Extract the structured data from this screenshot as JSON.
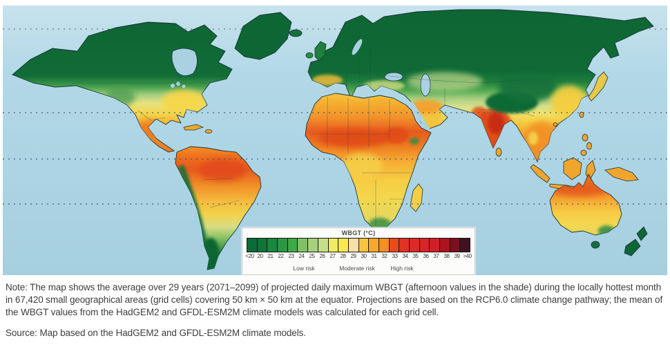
{
  "figure": {
    "kind": "world-choropleth-map",
    "subject": "Projected daily maximum WBGT during the locally hottest month (2071-2099 average)"
  },
  "map": {
    "ocean_color": "#aad2e3",
    "coastline_color": "#17323c",
    "dotted_latitude_lines": [
      "Tropic of Cancer",
      "Equator",
      "Tropic of Capricorn"
    ]
  },
  "legend": {
    "title": "WBGT (°C)",
    "entries": [
      {
        "label": "<20",
        "color": "#0a6b39"
      },
      {
        "label": "20",
        "color": "#117539"
      },
      {
        "label": "21",
        "color": "#1b863d"
      },
      {
        "label": "22",
        "color": "#2b9743"
      },
      {
        "label": "23",
        "color": "#3fa94a"
      },
      {
        "label": "24",
        "color": "#7fc266"
      },
      {
        "label": "25",
        "color": "#a5d07d"
      },
      {
        "label": "26",
        "color": "#c6de87"
      },
      {
        "label": "27",
        "color": "#eeeb66"
      },
      {
        "label": "28",
        "color": "#fbe84c"
      },
      {
        "label": "29",
        "color": "#f8dfa6"
      },
      {
        "label": "30",
        "color": "#f9c53e"
      },
      {
        "label": "31",
        "color": "#f9a82f"
      },
      {
        "label": "32",
        "color": "#f68e26"
      },
      {
        "label": "33",
        "color": "#ea4a1e"
      },
      {
        "label": "34",
        "color": "#e23322"
      },
      {
        "label": "35",
        "color": "#dd2a24"
      },
      {
        "label": "36",
        "color": "#d82525"
      },
      {
        "label": "37",
        "color": "#d01f27"
      },
      {
        "label": "38",
        "color": "#ac151e"
      },
      {
        "label": "39",
        "color": "#7a1120"
      },
      {
        "label": ">40",
        "color": "#3f1220"
      }
    ],
    "risk_bands": [
      {
        "label": "Low risk"
      },
      {
        "label": "Moderate risk"
      },
      {
        "label": "High risk"
      }
    ]
  },
  "notes": {
    "note": "Note: The map shows the average over 29 years (2071–2099) of projected daily maximum WBGT (afternoon values in the shade) during the locally hottest month in 67,420 small geographical areas (grid cells) covering 50 km × 50 km at the equator. Projections are based on the RCP6.0 climate change pathway; the mean of the WBGT values from the HadGEM2 and GFDL-ESM2M climate models was calculated for each grid cell.",
    "source": "Source: Map based on the HadGEM2 and GFDL-ESM2M climate models."
  }
}
